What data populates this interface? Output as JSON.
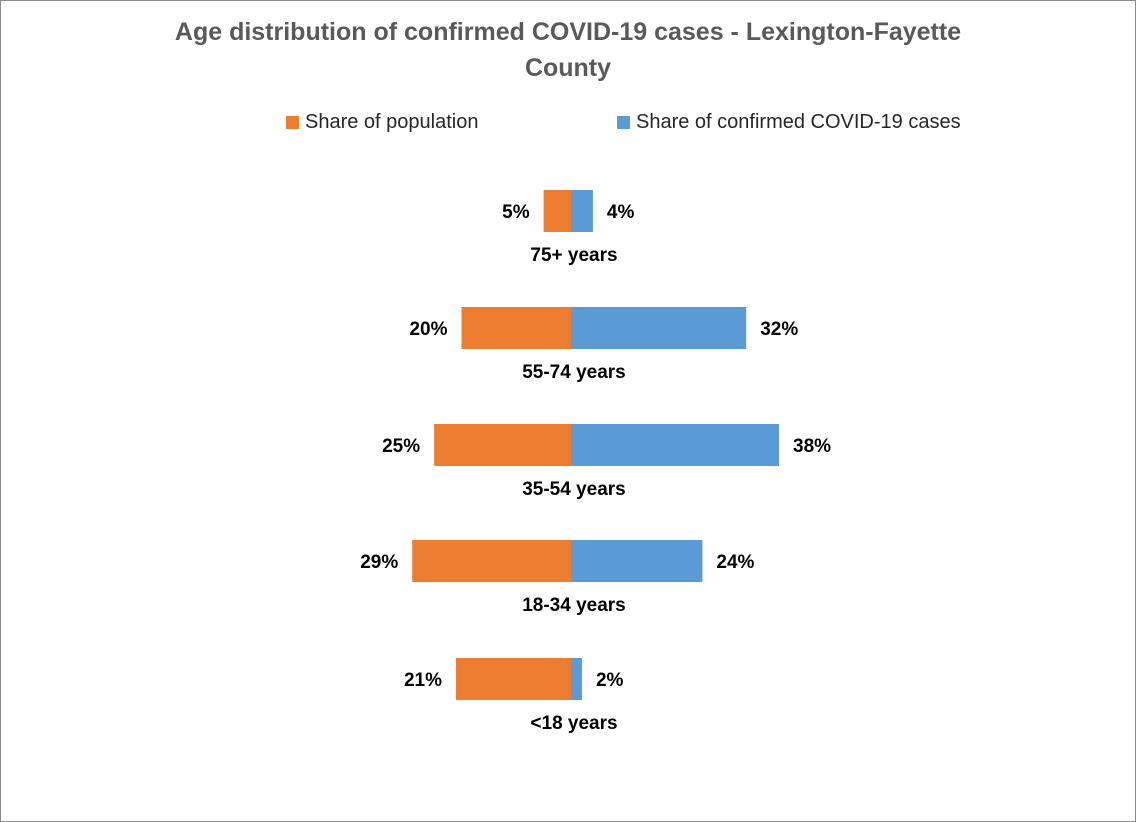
{
  "chart_data": {
    "type": "bar",
    "orientation": "horizontal-diverging",
    "title_lines": [
      "Age distribution of confirmed COVID-19 cases -  Lexington-Fayette",
      "County"
    ],
    "legend_position": "top",
    "categories": [
      "75+ years",
      "55-74 years",
      "35-54 years",
      "18-34 years",
      "<18 years"
    ],
    "series": [
      {
        "name": "Share of population",
        "color": "#ed7d31",
        "values": [
          5,
          20,
          25,
          29,
          21
        ],
        "labels": [
          "5%",
          "20%",
          "25%",
          "29%",
          "21%"
        ]
      },
      {
        "name": "Share of confirmed COVID-19 cases",
        "color": "#5b9bd5",
        "values": [
          4,
          32,
          38,
          24,
          2
        ],
        "labels": [
          "4%",
          "32%",
          "38%",
          "24%",
          "2%"
        ]
      }
    ],
    "grid": false
  }
}
